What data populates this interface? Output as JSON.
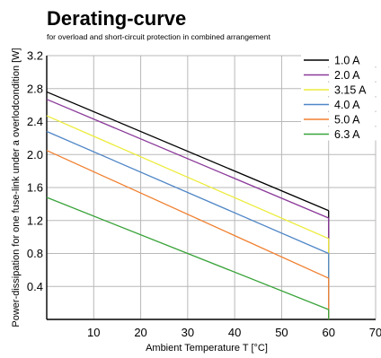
{
  "chart_data": {
    "type": "line",
    "title": "Derating-curve",
    "subtitle": "for overload and short-circuit protection in combined arrangement",
    "xlabel": "Ambient Temperature T [°C]",
    "ylabel": "Power-dissipation for one fuse-link under a overlodcondition [W]",
    "xlim": [
      0,
      70
    ],
    "ylim": [
      0,
      3.2
    ],
    "x_ticks": [
      "10",
      "20",
      "30",
      "40",
      "50",
      "60",
      "70"
    ],
    "y_ticks": [
      "0.4",
      "0.8",
      "1.2",
      "1.6",
      "2.0",
      "2.4",
      "2.8",
      "3.2"
    ],
    "grid": true,
    "legend_position": "top-right",
    "series": [
      {
        "name": "1.0 A",
        "color": "#000000",
        "x": [
          0,
          60
        ],
        "y": [
          2.76,
          1.32
        ]
      },
      {
        "name": "2.0 A",
        "color": "#8b3a9a",
        "x": [
          0,
          60
        ],
        "y": [
          2.67,
          1.23
        ]
      },
      {
        "name": "3.15 A",
        "color": "#ecec3c",
        "x": [
          0,
          60
        ],
        "y": [
          2.47,
          0.98
        ]
      },
      {
        "name": "4.0 A",
        "color": "#4f86c6",
        "x": [
          0,
          60
        ],
        "y": [
          2.28,
          0.8
        ]
      },
      {
        "name": "5.0 A",
        "color": "#f08030",
        "x": [
          0,
          60
        ],
        "y": [
          2.05,
          0.5
        ]
      },
      {
        "name": "6.3 A",
        "color": "#3aa33a",
        "x": [
          0,
          60
        ],
        "y": [
          1.48,
          0.12
        ]
      }
    ]
  }
}
